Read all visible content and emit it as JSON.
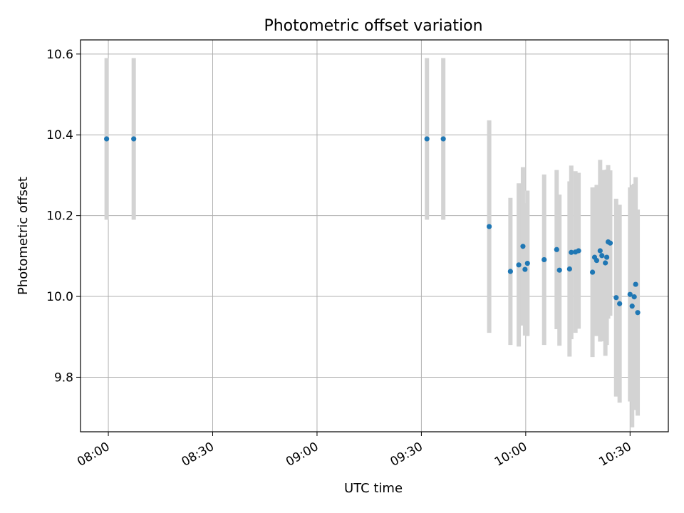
{
  "chart_data": {
    "type": "scatter",
    "title": "Photometric offset variation",
    "xlabel": "UTC time",
    "ylabel": "Photometric offset",
    "x_ticks": [
      "08:00",
      "08:30",
      "09:00",
      "09:30",
      "10:00",
      "10:30"
    ],
    "y_ticks": [
      "9.8",
      "10.0",
      "10.2",
      "10.4",
      "10.6"
    ],
    "xlim": [
      "07:52",
      "10:41"
    ],
    "ylim": [
      9.665,
      10.635
    ],
    "grid": true,
    "legend": "none",
    "point_color": "#1f77b4",
    "errorbar_color": "#d3d3d3",
    "series": [
      {
        "points": [
          {
            "x": "07:59.5",
            "y": 10.39,
            "err": 0.2
          },
          {
            "x": "08:07.3",
            "y": 10.39,
            "err": 0.2
          },
          {
            "x": "09:31.6",
            "y": 10.39,
            "err": 0.2
          },
          {
            "x": "09:36.3",
            "y": 10.39,
            "err": 0.2
          },
          {
            "x": "09:49.5",
            "y": 10.173,
            "err": 0.263
          },
          {
            "x": "09:55.6",
            "y": 10.062,
            "err": 0.182
          },
          {
            "x": "09:58.0",
            "y": 10.078,
            "err": 0.202
          },
          {
            "x": "09:59.2",
            "y": 10.124,
            "err": 0.196
          },
          {
            "x": "09:59.8",
            "y": 10.067,
            "err": 0.164
          },
          {
            "x": "10:00.5",
            "y": 10.082,
            "err": 0.18
          },
          {
            "x": "10:05.3",
            "y": 10.091,
            "err": 0.211
          },
          {
            "x": "10:08.9",
            "y": 10.116,
            "err": 0.197
          },
          {
            "x": "10:09.7",
            "y": 10.065,
            "err": 0.187
          },
          {
            "x": "10:12.6",
            "y": 10.068,
            "err": 0.217
          },
          {
            "x": "10:13.1",
            "y": 10.109,
            "err": 0.215
          },
          {
            "x": "10:14.3",
            "y": 10.11,
            "err": 0.2
          },
          {
            "x": "10:15.2",
            "y": 10.113,
            "err": 0.193
          },
          {
            "x": "10:19.2",
            "y": 10.06,
            "err": 0.21
          },
          {
            "x": "10:19.8",
            "y": 10.097,
            "err": 0.17
          },
          {
            "x": "10:20.4",
            "y": 10.089,
            "err": 0.187
          },
          {
            "x": "10:21.4",
            "y": 10.113,
            "err": 0.225
          },
          {
            "x": "10:21.9",
            "y": 10.101,
            "err": 0.212
          },
          {
            "x": "10:22.9",
            "y": 10.083,
            "err": 0.23
          },
          {
            "x": "10:23.3",
            "y": 10.097,
            "err": 0.217
          },
          {
            "x": "10:23.7",
            "y": 10.135,
            "err": 0.19
          },
          {
            "x": "10:24.3",
            "y": 10.132,
            "err": 0.18
          },
          {
            "x": "10:26.0",
            "y": 9.997,
            "err": 0.245
          },
          {
            "x": "10:27.0",
            "y": 9.982,
            "err": 0.245
          },
          {
            "x": "10:30.0",
            "y": 10.005,
            "err": 0.265
          },
          {
            "x": "10:30.6",
            "y": 9.976,
            "err": 0.3
          },
          {
            "x": "10:31.2",
            "y": 9.999,
            "err": 0.28
          },
          {
            "x": "10:31.6",
            "y": 10.03,
            "err": 0.265
          },
          {
            "x": "10:32.2",
            "y": 9.96,
            "err": 0.255
          }
        ]
      }
    ]
  }
}
